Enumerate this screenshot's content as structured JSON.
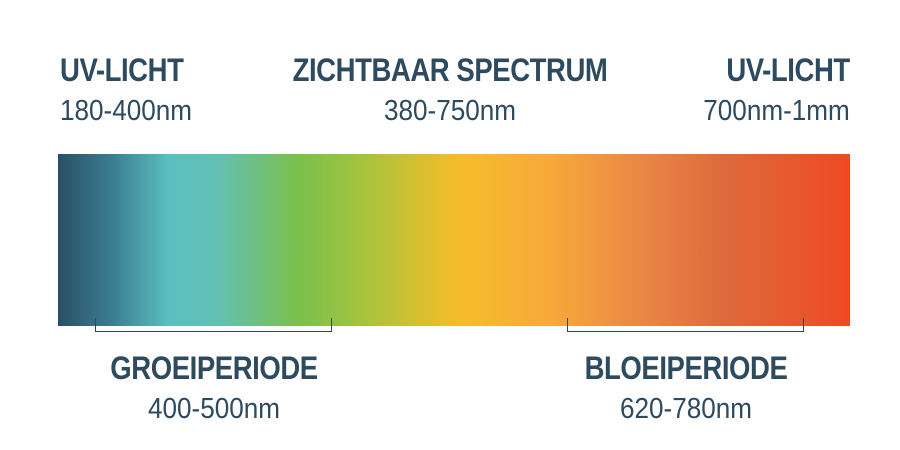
{
  "regions": {
    "uv_left": {
      "title": "UV-LICHT",
      "range": "180-400nm"
    },
    "visible": {
      "title": "ZICHTBAAR SPECTRUM",
      "range": "380-750nm"
    },
    "uv_right": {
      "title": "UV-LICHT",
      "range": "700nm-1mm"
    }
  },
  "phases": {
    "growth": {
      "title": "GROEIPERIODE",
      "range": "400-500nm"
    },
    "bloom": {
      "title": "BLOEIPERIODE",
      "range": "620-780nm"
    }
  },
  "colors": {
    "text": "#2d4a5e",
    "spectrum_start": "#2a4f66",
    "spectrum_cyan": "#5abfbf",
    "spectrum_green": "#7abf4e",
    "spectrum_yellow": "#f6bc2a",
    "spectrum_orange": "#f7a93a",
    "spectrum_end": "#ef4a23"
  }
}
